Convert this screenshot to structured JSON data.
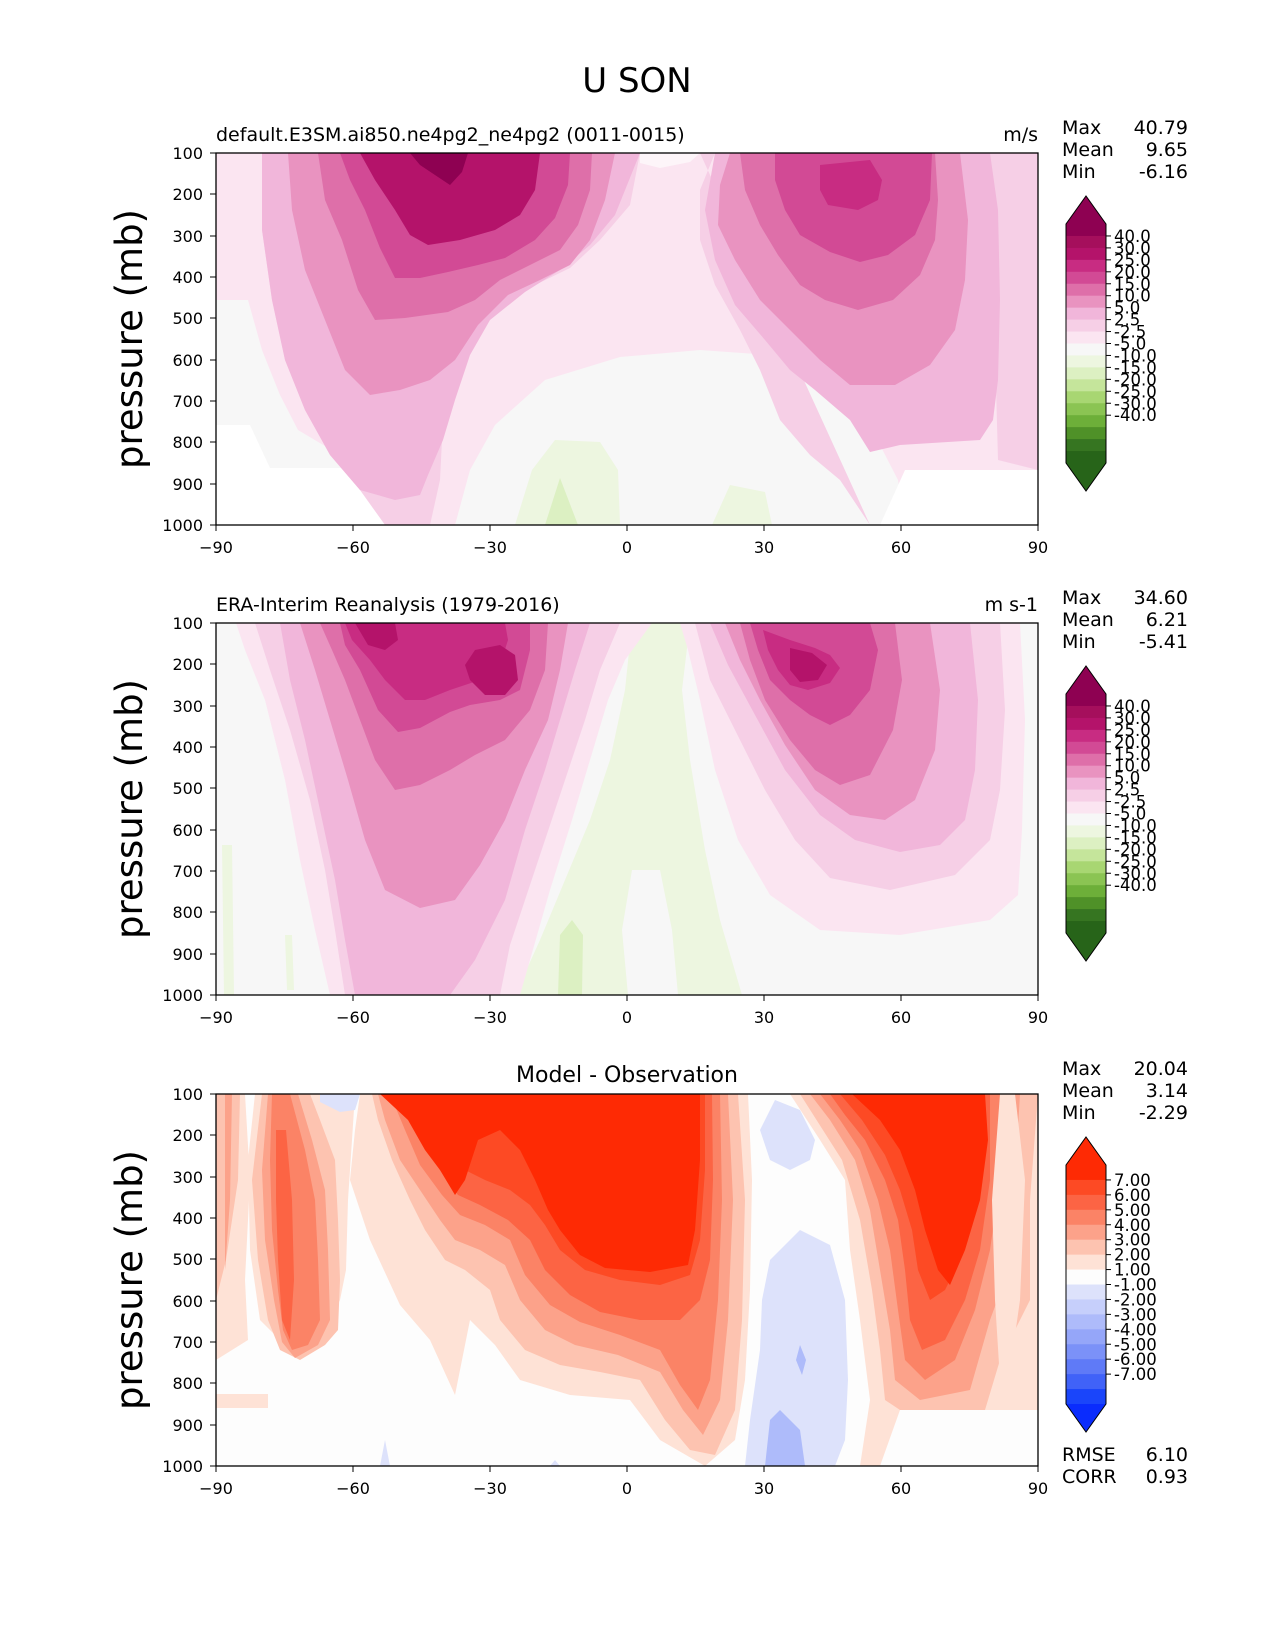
{
  "figure": {
    "title": "U SON"
  },
  "chart_data": [
    {
      "type": "heatmap",
      "title_left": "default.E3SM.ai850.ne4pg2_ne4pg2 (0011-0015)",
      "title_right": "m/s",
      "title_center": "",
      "ylabel": "pressure (mb)",
      "xlabel": "",
      "x_ticks": [
        "−90",
        "−60",
        "−30",
        "0",
        "30",
        "60",
        "90"
      ],
      "y_ticks": [
        "100",
        "200",
        "300",
        "400",
        "500",
        "600",
        "700",
        "800",
        "900",
        "1000"
      ],
      "xlim": [
        -90,
        90
      ],
      "ylim": [
        1000,
        100
      ],
      "stats": [
        {
          "label": "Max",
          "value": "40.79"
        },
        {
          "label": "Mean",
          "value": "9.65"
        },
        {
          "label": "Min",
          "value": "-6.16"
        }
      ],
      "colorbar_labels": [
        "40.0",
        "30.0",
        "25.0",
        "20.0",
        "15.0",
        "10.0",
        "5.0",
        "2.5",
        "-2.5",
        "-5.0",
        "-10.0",
        "-15.0",
        "-20.0",
        "-25.0",
        "-30.0",
        "-40.0"
      ],
      "colorbar_colors": [
        "#8e0152",
        "#a50f5c",
        "#b4136a",
        "#c82c82",
        "#d24a95",
        "#de6fa9",
        "#e993c0",
        "#f1b6da",
        "#f6cfe6",
        "#fbe5f1",
        "#f7f7f7",
        "#edf6e0",
        "#dcf0c2",
        "#c5e59b",
        "#a8d672",
        "#8bc453",
        "#6daf39",
        "#4f9128",
        "#367521",
        "#276419"
      ],
      "extremes": {
        "high": "#8e0152",
        "low": "#276419"
      }
    },
    {
      "type": "heatmap",
      "title_left": "ERA-Interim Reanalysis (1979-2016)",
      "title_right": "m s-1",
      "title_center": "",
      "ylabel": "pressure (mb)",
      "xlabel": "",
      "x_ticks": [
        "−90",
        "−60",
        "−30",
        "0",
        "30",
        "60",
        "90"
      ],
      "y_ticks": [
        "100",
        "200",
        "300",
        "400",
        "500",
        "600",
        "700",
        "800",
        "900",
        "1000"
      ],
      "xlim": [
        -90,
        90
      ],
      "ylim": [
        1000,
        100
      ],
      "stats": [
        {
          "label": "Max",
          "value": "34.60"
        },
        {
          "label": "Mean",
          "value": "6.21"
        },
        {
          "label": "Min",
          "value": "-5.41"
        }
      ],
      "colorbar_labels": [
        "40.0",
        "30.0",
        "25.0",
        "20.0",
        "15.0",
        "10.0",
        "5.0",
        "2.5",
        "-2.5",
        "-5.0",
        "-10.0",
        "-15.0",
        "-20.0",
        "-25.0",
        "-30.0",
        "-40.0"
      ],
      "colorbar_colors": [
        "#8e0152",
        "#a50f5c",
        "#b4136a",
        "#c82c82",
        "#d24a95",
        "#de6fa9",
        "#e993c0",
        "#f1b6da",
        "#f6cfe6",
        "#fbe5f1",
        "#f7f7f7",
        "#edf6e0",
        "#dcf0c2",
        "#c5e59b",
        "#a8d672",
        "#8bc453",
        "#6daf39",
        "#4f9128",
        "#367521",
        "#276419"
      ],
      "extremes": {
        "high": "#8e0152",
        "low": "#276419"
      }
    },
    {
      "type": "heatmap",
      "title_left": "",
      "title_right": "",
      "title_center": "Model - Observation",
      "ylabel": "pressure (mb)",
      "xlabel": "",
      "x_ticks": [
        "−90",
        "−60",
        "−30",
        "0",
        "30",
        "60",
        "90"
      ],
      "y_ticks": [
        "100",
        "200",
        "300",
        "400",
        "500",
        "600",
        "700",
        "800",
        "900",
        "1000"
      ],
      "xlim": [
        -90,
        90
      ],
      "ylim": [
        1000,
        100
      ],
      "stats": [
        {
          "label": "Max",
          "value": "20.04"
        },
        {
          "label": "Mean",
          "value": "3.14"
        },
        {
          "label": "Min",
          "value": "-2.29"
        }
      ],
      "extra_stats": [
        {
          "label": "RMSE",
          "value": "6.10"
        },
        {
          "label": "CORR",
          "value": "0.93"
        }
      ],
      "colorbar_labels": [
        "7.00",
        "6.00",
        "5.00",
        "4.00",
        "3.00",
        "2.00",
        "1.00",
        "-1.00",
        "-2.00",
        "-3.00",
        "-4.00",
        "-5.00",
        "-6.00",
        "-7.00"
      ],
      "colorbar_colors": [
        "#fe2a04",
        "#fd4a24",
        "#fc6444",
        "#fb8366",
        "#fca28a",
        "#fdc3b0",
        "#fee2d6",
        "#fdfdfd",
        "#dde2fb",
        "#c6cffb",
        "#aebbfa",
        "#95a6f9",
        "#7b91f8",
        "#5f7af7",
        "#4062f8",
        "#1a45fa"
      ],
      "extremes": {
        "high": "#fe2a04",
        "low": "#0a2cfd"
      }
    }
  ]
}
